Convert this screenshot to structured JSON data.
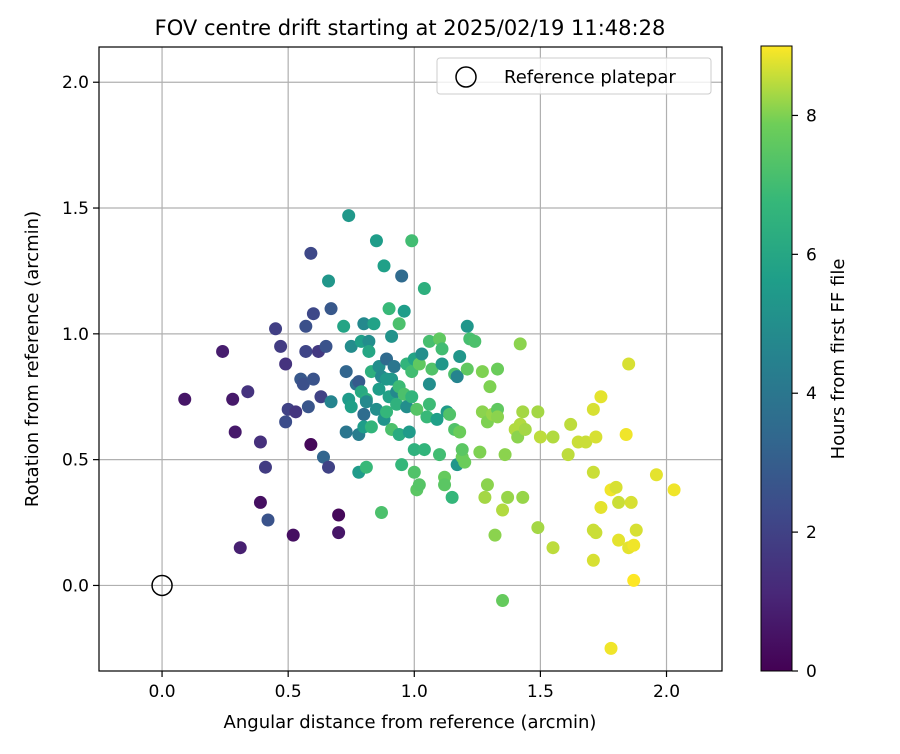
{
  "chart_data": {
    "type": "scatter",
    "title": "FOV centre drift starting at 2025/02/19 11:48:28",
    "xlabel": "Angular distance from reference (arcmin)",
    "ylabel": "Rotation from reference (arcmin)",
    "xlim": [
      -0.25,
      2.22
    ],
    "ylim": [
      -0.34,
      2.14
    ],
    "xticks": [
      0.0,
      0.5,
      1.0,
      1.5,
      2.0
    ],
    "xtick_labels": [
      "0.0",
      "0.5",
      "1.0",
      "1.5",
      "2.0"
    ],
    "yticks": [
      0.0,
      0.5,
      1.0,
      1.5,
      2.0
    ],
    "ytick_labels": [
      "0.0",
      "0.5",
      "1.0",
      "1.5",
      "2.0"
    ],
    "grid": true,
    "legend": {
      "position": "top-right",
      "entries": [
        "Reference platepar"
      ]
    },
    "colormap": "viridis",
    "colorbar": {
      "label": "Hours from first FF file",
      "min": 0,
      "max": 9,
      "ticks": [
        0,
        2,
        4,
        6,
        8
      ],
      "tick_labels": [
        "0",
        "2",
        "4",
        "6",
        "8"
      ]
    },
    "reference_point": {
      "x": 0.0,
      "y": 0.0
    },
    "points": [
      {
        "x": 0.09,
        "y": 0.74,
        "c": 0.6
      },
      {
        "x": 0.24,
        "y": 0.93,
        "c": 0.8
      },
      {
        "x": 0.28,
        "y": 0.74,
        "c": 0.7
      },
      {
        "x": 0.29,
        "y": 0.61,
        "c": 0.7
      },
      {
        "x": 0.31,
        "y": 0.15,
        "c": 0.9
      },
      {
        "x": 0.34,
        "y": 0.77,
        "c": 1.5
      },
      {
        "x": 0.39,
        "y": 0.33,
        "c": 0.4
      },
      {
        "x": 0.39,
        "y": 0.57,
        "c": 1.4
      },
      {
        "x": 0.41,
        "y": 0.47,
        "c": 1.8
      },
      {
        "x": 0.42,
        "y": 0.26,
        "c": 2.6
      },
      {
        "x": 0.45,
        "y": 1.02,
        "c": 1.9
      },
      {
        "x": 0.47,
        "y": 0.95,
        "c": 1.8
      },
      {
        "x": 0.49,
        "y": 0.88,
        "c": 1.5
      },
      {
        "x": 0.49,
        "y": 0.65,
        "c": 2.4
      },
      {
        "x": 0.5,
        "y": 0.7,
        "c": 2.0
      },
      {
        "x": 0.52,
        "y": 0.2,
        "c": 0.4
      },
      {
        "x": 0.53,
        "y": 0.69,
        "c": 1.6
      },
      {
        "x": 0.55,
        "y": 0.82,
        "c": 2.8
      },
      {
        "x": 0.56,
        "y": 0.8,
        "c": 2.5
      },
      {
        "x": 0.57,
        "y": 1.03,
        "c": 2.5
      },
      {
        "x": 0.57,
        "y": 0.93,
        "c": 2.1
      },
      {
        "x": 0.58,
        "y": 0.71,
        "c": 2.7
      },
      {
        "x": 0.59,
        "y": 1.32,
        "c": 2.2
      },
      {
        "x": 0.59,
        "y": 0.56,
        "c": 0.2
      },
      {
        "x": 0.6,
        "y": 0.82,
        "c": 2.6
      },
      {
        "x": 0.6,
        "y": 1.08,
        "c": 2.2
      },
      {
        "x": 0.62,
        "y": 0.93,
        "c": 1.7
      },
      {
        "x": 0.63,
        "y": 0.75,
        "c": 2.0
      },
      {
        "x": 0.64,
        "y": 0.51,
        "c": 3.3
      },
      {
        "x": 0.65,
        "y": 0.95,
        "c": 2.6
      },
      {
        "x": 0.66,
        "y": 1.21,
        "c": 5.3
      },
      {
        "x": 0.66,
        "y": 0.47,
        "c": 2.0
      },
      {
        "x": 0.67,
        "y": 1.1,
        "c": 2.8
      },
      {
        "x": 0.67,
        "y": 0.73,
        "c": 4.6
      },
      {
        "x": 0.7,
        "y": 0.28,
        "c": 0.2
      },
      {
        "x": 0.7,
        "y": 0.21,
        "c": 0.6
      },
      {
        "x": 0.72,
        "y": 1.03,
        "c": 5.9
      },
      {
        "x": 0.73,
        "y": 0.61,
        "c": 4.0
      },
      {
        "x": 0.73,
        "y": 0.85,
        "c": 3.3
      },
      {
        "x": 0.74,
        "y": 1.47,
        "c": 5.4
      },
      {
        "x": 0.74,
        "y": 0.74,
        "c": 5.5
      },
      {
        "x": 0.75,
        "y": 0.71,
        "c": 5.7
      },
      {
        "x": 0.75,
        "y": 0.95,
        "c": 4.9
      },
      {
        "x": 0.77,
        "y": 0.8,
        "c": 3.8
      },
      {
        "x": 0.78,
        "y": 0.81,
        "c": 2.9
      },
      {
        "x": 0.78,
        "y": 0.6,
        "c": 4.3
      },
      {
        "x": 0.78,
        "y": 0.45,
        "c": 5.5
      },
      {
        "x": 0.79,
        "y": 0.77,
        "c": 6.1
      },
      {
        "x": 0.79,
        "y": 0.97,
        "c": 5.7
      },
      {
        "x": 0.8,
        "y": 0.68,
        "c": 3.6
      },
      {
        "x": 0.8,
        "y": 1.04,
        "c": 4.8
      },
      {
        "x": 0.8,
        "y": 0.63,
        "c": 5.6
      },
      {
        "x": 0.81,
        "y": 0.74,
        "c": 6.3
      },
      {
        "x": 0.81,
        "y": 0.73,
        "c": 4.8
      },
      {
        "x": 0.81,
        "y": 0.47,
        "c": 6.8
      },
      {
        "x": 0.82,
        "y": 0.97,
        "c": 5.0
      },
      {
        "x": 0.82,
        "y": 0.93,
        "c": 6.0
      },
      {
        "x": 0.83,
        "y": 0.63,
        "c": 6.6
      },
      {
        "x": 0.83,
        "y": 0.85,
        "c": 6.4
      },
      {
        "x": 0.84,
        "y": 1.04,
        "c": 5.8
      },
      {
        "x": 0.85,
        "y": 1.37,
        "c": 5.6
      },
      {
        "x": 0.85,
        "y": 0.7,
        "c": 5.0
      },
      {
        "x": 0.86,
        "y": 0.87,
        "c": 5.0
      },
      {
        "x": 0.86,
        "y": 0.78,
        "c": 5.6
      },
      {
        "x": 0.87,
        "y": 0.83,
        "c": 4.8
      },
      {
        "x": 0.87,
        "y": 0.29,
        "c": 7.2
      },
      {
        "x": 0.88,
        "y": 1.27,
        "c": 5.7
      },
      {
        "x": 0.88,
        "y": 0.66,
        "c": 5.2
      },
      {
        "x": 0.89,
        "y": 0.9,
        "c": 3.5
      },
      {
        "x": 0.89,
        "y": 0.82,
        "c": 5.4
      },
      {
        "x": 0.89,
        "y": 0.69,
        "c": 6.7
      },
      {
        "x": 0.9,
        "y": 1.1,
        "c": 6.8
      },
      {
        "x": 0.9,
        "y": 0.75,
        "c": 5.8
      },
      {
        "x": 0.91,
        "y": 0.99,
        "c": 5.2
      },
      {
        "x": 0.91,
        "y": 0.82,
        "c": 5.4
      },
      {
        "x": 0.91,
        "y": 0.62,
        "c": 7.2
      },
      {
        "x": 0.92,
        "y": 0.87,
        "c": 4.0
      },
      {
        "x": 0.93,
        "y": 0.77,
        "c": 4.8
      },
      {
        "x": 0.93,
        "y": 0.72,
        "c": 6.5
      },
      {
        "x": 0.94,
        "y": 0.79,
        "c": 6.9
      },
      {
        "x": 0.94,
        "y": 0.6,
        "c": 6.2
      },
      {
        "x": 0.94,
        "y": 1.04,
        "c": 7.2
      },
      {
        "x": 0.95,
        "y": 1.23,
        "c": 3.5
      },
      {
        "x": 0.95,
        "y": 0.48,
        "c": 6.7
      },
      {
        "x": 0.96,
        "y": 1.09,
        "c": 5.6
      },
      {
        "x": 0.96,
        "y": 0.76,
        "c": 7.2
      },
      {
        "x": 0.97,
        "y": 0.88,
        "c": 6.6
      },
      {
        "x": 0.97,
        "y": 0.71,
        "c": 5.0
      },
      {
        "x": 0.98,
        "y": 0.61,
        "c": 5.5
      },
      {
        "x": 0.99,
        "y": 1.37,
        "c": 7.0
      },
      {
        "x": 0.99,
        "y": 0.85,
        "c": 7.0
      },
      {
        "x": 0.99,
        "y": 0.75,
        "c": 6.6
      },
      {
        "x": 1.0,
        "y": 0.9,
        "c": 5.9
      },
      {
        "x": 1.0,
        "y": 0.54,
        "c": 6.5
      },
      {
        "x": 1.0,
        "y": 0.45,
        "c": 7.3
      },
      {
        "x": 1.01,
        "y": 0.7,
        "c": 7.4
      },
      {
        "x": 1.01,
        "y": 0.38,
        "c": 7.5
      },
      {
        "x": 1.02,
        "y": 0.4,
        "c": 7.4
      },
      {
        "x": 1.02,
        "y": 0.88,
        "c": 7.6
      },
      {
        "x": 1.03,
        "y": 0.92,
        "c": 5.0
      },
      {
        "x": 1.04,
        "y": 1.18,
        "c": 6.4
      },
      {
        "x": 1.04,
        "y": 0.54,
        "c": 6.6
      },
      {
        "x": 1.05,
        "y": 0.67,
        "c": 6.8
      },
      {
        "x": 1.06,
        "y": 0.97,
        "c": 7.1
      },
      {
        "x": 1.06,
        "y": 0.8,
        "c": 5.0
      },
      {
        "x": 1.06,
        "y": 0.72,
        "c": 6.9
      },
      {
        "x": 1.07,
        "y": 0.86,
        "c": 7.3
      },
      {
        "x": 1.09,
        "y": 0.66,
        "c": 5.7
      },
      {
        "x": 1.1,
        "y": 0.98,
        "c": 7.6
      },
      {
        "x": 1.1,
        "y": 0.52,
        "c": 7.0
      },
      {
        "x": 1.11,
        "y": 0.94,
        "c": 7.0
      },
      {
        "x": 1.11,
        "y": 0.88,
        "c": 5.3
      },
      {
        "x": 1.12,
        "y": 0.43,
        "c": 7.7
      },
      {
        "x": 1.12,
        "y": 0.4,
        "c": 7.5
      },
      {
        "x": 1.13,
        "y": 0.69,
        "c": 5.5
      },
      {
        "x": 1.14,
        "y": 0.68,
        "c": 7.3
      },
      {
        "x": 1.15,
        "y": 0.35,
        "c": 6.7
      },
      {
        "x": 1.16,
        "y": 0.62,
        "c": 7.3
      },
      {
        "x": 1.16,
        "y": 0.84,
        "c": 7.2
      },
      {
        "x": 1.17,
        "y": 0.83,
        "c": 4.6
      },
      {
        "x": 1.17,
        "y": 0.48,
        "c": 5.3
      },
      {
        "x": 1.18,
        "y": 0.61,
        "c": 7.8
      },
      {
        "x": 1.18,
        "y": 0.91,
        "c": 5.3
      },
      {
        "x": 1.19,
        "y": 0.51,
        "c": 7.8
      },
      {
        "x": 1.19,
        "y": 0.54,
        "c": 7.5
      },
      {
        "x": 1.2,
        "y": 0.49,
        "c": 7.8
      },
      {
        "x": 1.21,
        "y": 1.03,
        "c": 5.3
      },
      {
        "x": 1.21,
        "y": 0.86,
        "c": 7.6
      },
      {
        "x": 1.22,
        "y": 0.98,
        "c": 7.1
      },
      {
        "x": 1.24,
        "y": 0.97,
        "c": 7.2
      },
      {
        "x": 1.26,
        "y": 0.53,
        "c": 8.0
      },
      {
        "x": 1.27,
        "y": 0.85,
        "c": 8.0
      },
      {
        "x": 1.27,
        "y": 0.69,
        "c": 8.1
      },
      {
        "x": 1.28,
        "y": 0.35,
        "c": 8.3
      },
      {
        "x": 1.29,
        "y": 0.65,
        "c": 8.0
      },
      {
        "x": 1.29,
        "y": 0.4,
        "c": 8.1
      },
      {
        "x": 1.3,
        "y": 0.79,
        "c": 8.0
      },
      {
        "x": 1.31,
        "y": 0.68,
        "c": 8.2
      },
      {
        "x": 1.32,
        "y": 0.2,
        "c": 8.1
      },
      {
        "x": 1.33,
        "y": 0.7,
        "c": 7.6
      },
      {
        "x": 1.33,
        "y": 0.67,
        "c": 8.1
      },
      {
        "x": 1.33,
        "y": 0.86,
        "c": 7.8
      },
      {
        "x": 1.35,
        "y": -0.06,
        "c": 7.7
      },
      {
        "x": 1.35,
        "y": 0.3,
        "c": 8.4
      },
      {
        "x": 1.36,
        "y": 0.52,
        "c": 8.1
      },
      {
        "x": 1.37,
        "y": 0.35,
        "c": 8.2
      },
      {
        "x": 1.4,
        "y": 0.62,
        "c": 8.4
      },
      {
        "x": 1.41,
        "y": 0.59,
        "c": 8.1
      },
      {
        "x": 1.42,
        "y": 0.96,
        "c": 8.1
      },
      {
        "x": 1.42,
        "y": 0.64,
        "c": 8.4
      },
      {
        "x": 1.43,
        "y": 0.69,
        "c": 8.3
      },
      {
        "x": 1.43,
        "y": 0.35,
        "c": 8.2
      },
      {
        "x": 1.44,
        "y": 0.62,
        "c": 8.3
      },
      {
        "x": 1.49,
        "y": 0.23,
        "c": 8.3
      },
      {
        "x": 1.49,
        "y": 0.69,
        "c": 8.3
      },
      {
        "x": 1.5,
        "y": 0.59,
        "c": 8.5
      },
      {
        "x": 1.55,
        "y": 0.15,
        "c": 8.5
      },
      {
        "x": 1.55,
        "y": 0.59,
        "c": 8.4
      },
      {
        "x": 1.61,
        "y": 0.52,
        "c": 8.5
      },
      {
        "x": 1.62,
        "y": 0.64,
        "c": 8.5
      },
      {
        "x": 1.65,
        "y": 0.57,
        "c": 8.6
      },
      {
        "x": 1.68,
        "y": 0.57,
        "c": 8.6
      },
      {
        "x": 1.71,
        "y": 0.7,
        "c": 8.7
      },
      {
        "x": 1.71,
        "y": 0.45,
        "c": 8.6
      },
      {
        "x": 1.71,
        "y": 0.22,
        "c": 8.6
      },
      {
        "x": 1.71,
        "y": 0.1,
        "c": 8.7
      },
      {
        "x": 1.72,
        "y": 0.59,
        "c": 8.7
      },
      {
        "x": 1.72,
        "y": 0.21,
        "c": 8.6
      },
      {
        "x": 1.74,
        "y": 0.31,
        "c": 8.8
      },
      {
        "x": 1.74,
        "y": 0.75,
        "c": 8.8
      },
      {
        "x": 1.78,
        "y": -0.25,
        "c": 8.9
      },
      {
        "x": 1.78,
        "y": 0.38,
        "c": 8.9
      },
      {
        "x": 1.8,
        "y": 0.39,
        "c": 8.7
      },
      {
        "x": 1.81,
        "y": 0.18,
        "c": 8.8
      },
      {
        "x": 1.81,
        "y": 0.33,
        "c": 8.6
      },
      {
        "x": 1.84,
        "y": 0.6,
        "c": 8.9
      },
      {
        "x": 1.85,
        "y": 0.88,
        "c": 8.7
      },
      {
        "x": 1.85,
        "y": 0.15,
        "c": 8.8
      },
      {
        "x": 1.86,
        "y": 0.33,
        "c": 8.7
      },
      {
        "x": 1.87,
        "y": 0.16,
        "c": 8.9
      },
      {
        "x": 1.87,
        "y": 0.02,
        "c": 9.0
      },
      {
        "x": 1.88,
        "y": 0.22,
        "c": 8.7
      },
      {
        "x": 1.96,
        "y": 0.44,
        "c": 8.8
      },
      {
        "x": 2.03,
        "y": 0.38,
        "c": 8.9
      }
    ]
  }
}
